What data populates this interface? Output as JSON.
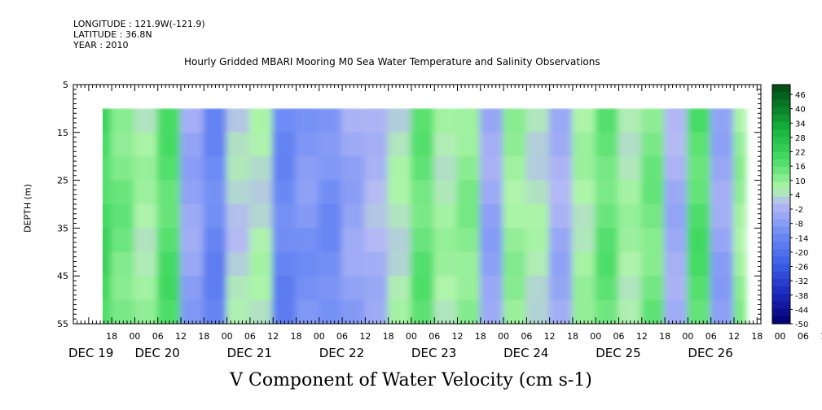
{
  "header": {
    "longitude": "LONGITUDE : 121.9W(-121.9)",
    "latitude": "LATITUDE : 36.8N",
    "year": "YEAR : 2010"
  },
  "chart_data": {
    "type": "heatmap",
    "title": "Hourly Gridded MBARI Mooring M0 Sea Water Temperature and Salinity Observations",
    "xlabel": "V Component of Water Velocity (cm s-1)",
    "ylabel": "DEPTH (m)",
    "ylim": [
      5,
      55
    ],
    "y_inverted": true,
    "y_ticks": [
      "5",
      "15",
      "25",
      "35",
      "45",
      "55"
    ],
    "data_depth_range": [
      10,
      55
    ],
    "hour_tick_labels": [
      "18",
      "00",
      "06",
      "12",
      "18",
      "00",
      "06",
      "12",
      "18",
      "00",
      "06",
      "12",
      "18",
      "00",
      "06",
      "12",
      "18",
      "00",
      "06",
      "12",
      "18",
      "00",
      "06",
      "12",
      "18",
      "00",
      "06",
      "12",
      "18",
      "00",
      "06",
      "12"
    ],
    "day_labels": [
      "DEC 19",
      "DEC 20",
      "DEC 21",
      "DEC 22",
      "DEC 23",
      "DEC 24",
      "DEC 25",
      "DEC 26"
    ],
    "colorbar_labels": [
      "46",
      "40",
      "34",
      "28",
      "22",
      "16",
      "10",
      "4",
      "-2",
      "-8",
      "-14",
      "-20",
      "-26",
      "-32",
      "-38",
      "-44",
      "-50"
    ],
    "colorbar_range": [
      -50,
      46
    ],
    "time_start": "2010-12-19 14:00",
    "time_end": "2010-12-26 15:00",
    "velocity_columns": [
      {
        "time": "2010-12-19 14:00",
        "v": 16
      },
      {
        "time": "2010-12-19 18:00",
        "v": 10
      },
      {
        "time": "2010-12-20 00:00",
        "v": 4
      },
      {
        "time": "2010-12-20 06:00",
        "v": 14
      },
      {
        "time": "2010-12-20 12:00",
        "v": -6
      },
      {
        "time": "2010-12-20 18:00",
        "v": -14
      },
      {
        "time": "2010-12-21 00:00",
        "v": 0
      },
      {
        "time": "2010-12-21 06:00",
        "v": 2
      },
      {
        "time": "2010-12-21 12:00",
        "v": -14
      },
      {
        "time": "2010-12-21 18:00",
        "v": -10
      },
      {
        "time": "2010-12-22 00:00",
        "v": -12
      },
      {
        "time": "2010-12-22 06:00",
        "v": -6
      },
      {
        "time": "2010-12-22 12:00",
        "v": -2
      },
      {
        "time": "2010-12-22 18:00",
        "v": 2
      },
      {
        "time": "2010-12-23 00:00",
        "v": 12
      },
      {
        "time": "2010-12-23 06:00",
        "v": 4
      },
      {
        "time": "2010-12-23 12:00",
        "v": 8
      },
      {
        "time": "2010-12-23 18:00",
        "v": -6
      },
      {
        "time": "2010-12-24 00:00",
        "v": 6
      },
      {
        "time": "2010-12-24 06:00",
        "v": 2
      },
      {
        "time": "2010-12-24 12:00",
        "v": -4
      },
      {
        "time": "2010-12-24 18:00",
        "v": 4
      },
      {
        "time": "2010-12-25 00:00",
        "v": 12
      },
      {
        "time": "2010-12-25 06:00",
        "v": 4
      },
      {
        "time": "2010-12-25 12:00",
        "v": 10
      },
      {
        "time": "2010-12-25 18:00",
        "v": -4
      },
      {
        "time": "2010-12-26 00:00",
        "v": 14
      },
      {
        "time": "2010-12-26 06:00",
        "v": -6
      },
      {
        "time": "2010-12-26 12:00",
        "v": 6
      }
    ]
  }
}
